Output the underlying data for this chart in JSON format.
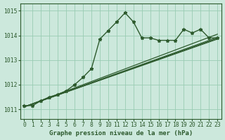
{
  "title": "Graphe pression niveau de la mer (hPa)",
  "bg_color": "#cce8dc",
  "grid_color": "#99ccb3",
  "line_color": "#2d5a2d",
  "xlim": [
    -0.5,
    23.5
  ],
  "ylim": [
    1010.6,
    1015.3
  ],
  "yticks": [
    1011,
    1012,
    1013,
    1014,
    1015
  ],
  "xticks": [
    0,
    1,
    2,
    3,
    4,
    5,
    6,
    7,
    8,
    9,
    10,
    11,
    12,
    13,
    14,
    15,
    16,
    17,
    18,
    19,
    20,
    21,
    22,
    23
  ],
  "main_line": {
    "x": [
      0,
      1,
      2,
      3,
      4,
      5,
      6,
      7,
      8,
      9,
      10,
      11,
      12,
      13,
      14,
      15,
      16,
      17,
      18,
      19,
      20,
      21,
      22,
      23
    ],
    "y": [
      1011.15,
      1011.15,
      1011.35,
      1011.5,
      1011.6,
      1011.75,
      1012.0,
      1012.3,
      1012.65,
      1013.85,
      1014.2,
      1014.55,
      1014.92,
      1014.55,
      1013.9,
      1013.9,
      1013.8,
      1013.8,
      1013.8,
      1014.25,
      1014.1,
      1014.25,
      1013.9,
      1013.9
    ]
  },
  "trend_lines": [
    {
      "x0": 0,
      "y0": 1011.1,
      "x1": 23,
      "y1": 1013.92
    },
    {
      "x0": 0,
      "y0": 1011.1,
      "x1": 23,
      "y1": 1013.85
    },
    {
      "x0": 0,
      "y0": 1011.1,
      "x1": 23,
      "y1": 1013.88
    },
    {
      "x0": 0,
      "y0": 1011.1,
      "x1": 23,
      "y1": 1014.05
    }
  ]
}
